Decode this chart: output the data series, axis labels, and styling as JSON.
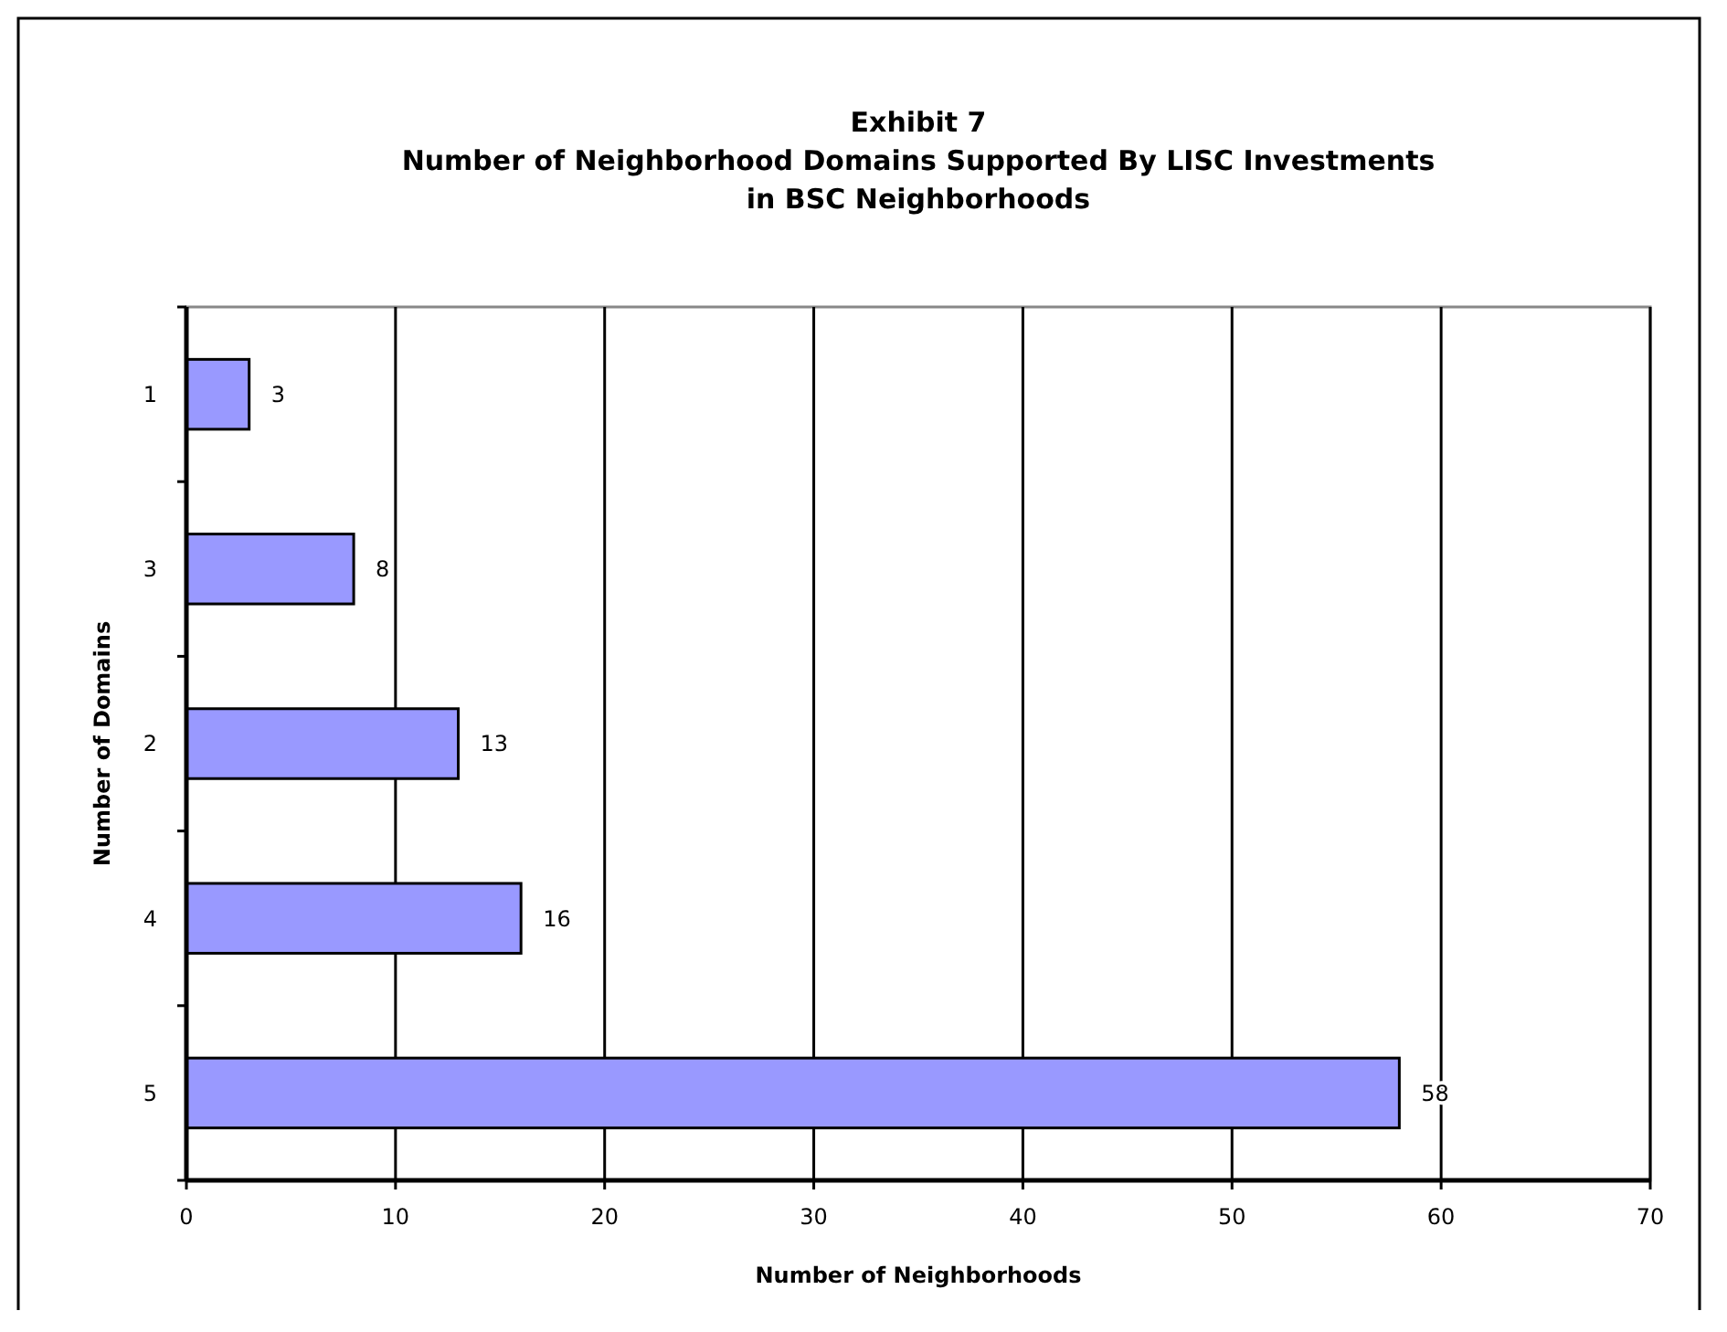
{
  "chart_data": {
    "type": "bar",
    "orientation": "horizontal",
    "title": "Exhibit 7\nNumber of Neighborhood Domains Supported By LISC Investments\nin BSC Neighborhoods",
    "xlabel": "Number of Neighborhoods",
    "ylabel": "Number of Domains",
    "categories": [
      "1",
      "3",
      "2",
      "4",
      "5"
    ],
    "values": [
      3,
      8,
      13,
      16,
      58
    ],
    "color": "#9999ff",
    "xlim": [
      0,
      70
    ],
    "xticks": [
      0,
      10,
      20,
      30,
      40,
      50,
      60,
      70
    ],
    "grid": "x",
    "data_labels": true
  }
}
